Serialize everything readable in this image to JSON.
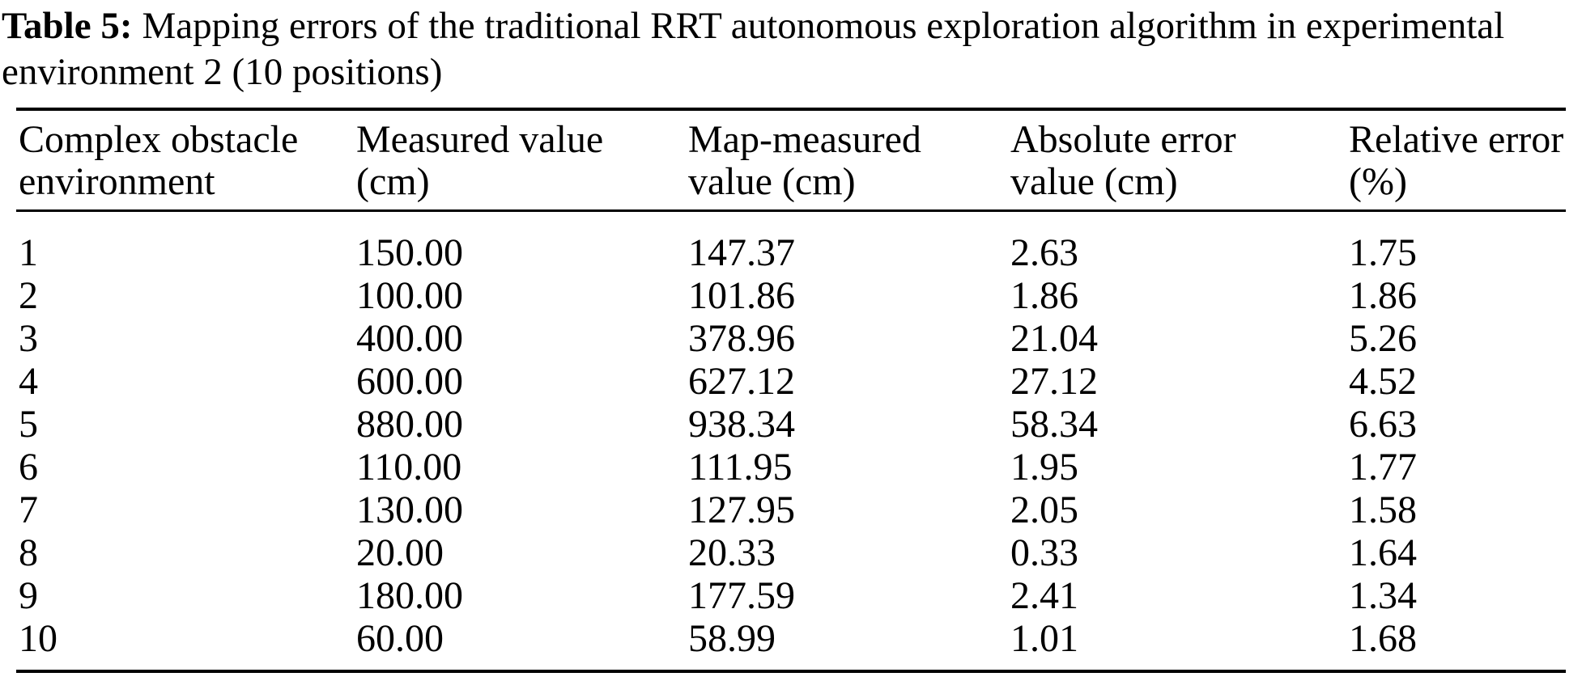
{
  "caption": {
    "label": "Table 5:",
    "text": "Mapping errors of the traditional RRT autonomous exploration algorithm in experimental\nenvironment 2 (10 positions)"
  },
  "table": {
    "columns": [
      {
        "key": "env",
        "label": "Complex obstacle\nenvironment"
      },
      {
        "key": "measured",
        "label": "Measured value\n(cm)"
      },
      {
        "key": "map_measured",
        "label": "Map-measured\nvalue (cm)"
      },
      {
        "key": "absolute_error",
        "label": "Absolute error\nvalue (cm)"
      },
      {
        "key": "relative_error",
        "label": "Relative error\n(%)"
      }
    ],
    "rows": [
      {
        "env": "1",
        "measured": "150.00",
        "map_measured": "147.37",
        "absolute_error": "2.63",
        "relative_error": "1.75"
      },
      {
        "env": "2",
        "measured": "100.00",
        "map_measured": "101.86",
        "absolute_error": "1.86",
        "relative_error": "1.86"
      },
      {
        "env": "3",
        "measured": "400.00",
        "map_measured": "378.96",
        "absolute_error": "21.04",
        "relative_error": "5.26"
      },
      {
        "env": "4",
        "measured": "600.00",
        "map_measured": "627.12",
        "absolute_error": "27.12",
        "relative_error": "4.52"
      },
      {
        "env": "5",
        "measured": "880.00",
        "map_measured": "938.34",
        "absolute_error": "58.34",
        "relative_error": "6.63"
      },
      {
        "env": "6",
        "measured": "110.00",
        "map_measured": "111.95",
        "absolute_error": "1.95",
        "relative_error": "1.77"
      },
      {
        "env": "7",
        "measured": "130.00",
        "map_measured": "127.95",
        "absolute_error": "2.05",
        "relative_error": "1.58"
      },
      {
        "env": "8",
        "measured": "20.00",
        "map_measured": "20.33",
        "absolute_error": "0.33",
        "relative_error": "1.64"
      },
      {
        "env": "9",
        "measured": "180.00",
        "map_measured": "177.59",
        "absolute_error": "2.41",
        "relative_error": "1.34"
      },
      {
        "env": "10",
        "measured": "60.00",
        "map_measured": "58.99",
        "absolute_error": "1.01",
        "relative_error": "1.68"
      }
    ]
  },
  "colors": {
    "text": "#000000",
    "background": "#ffffff",
    "rule": "#000000"
  }
}
